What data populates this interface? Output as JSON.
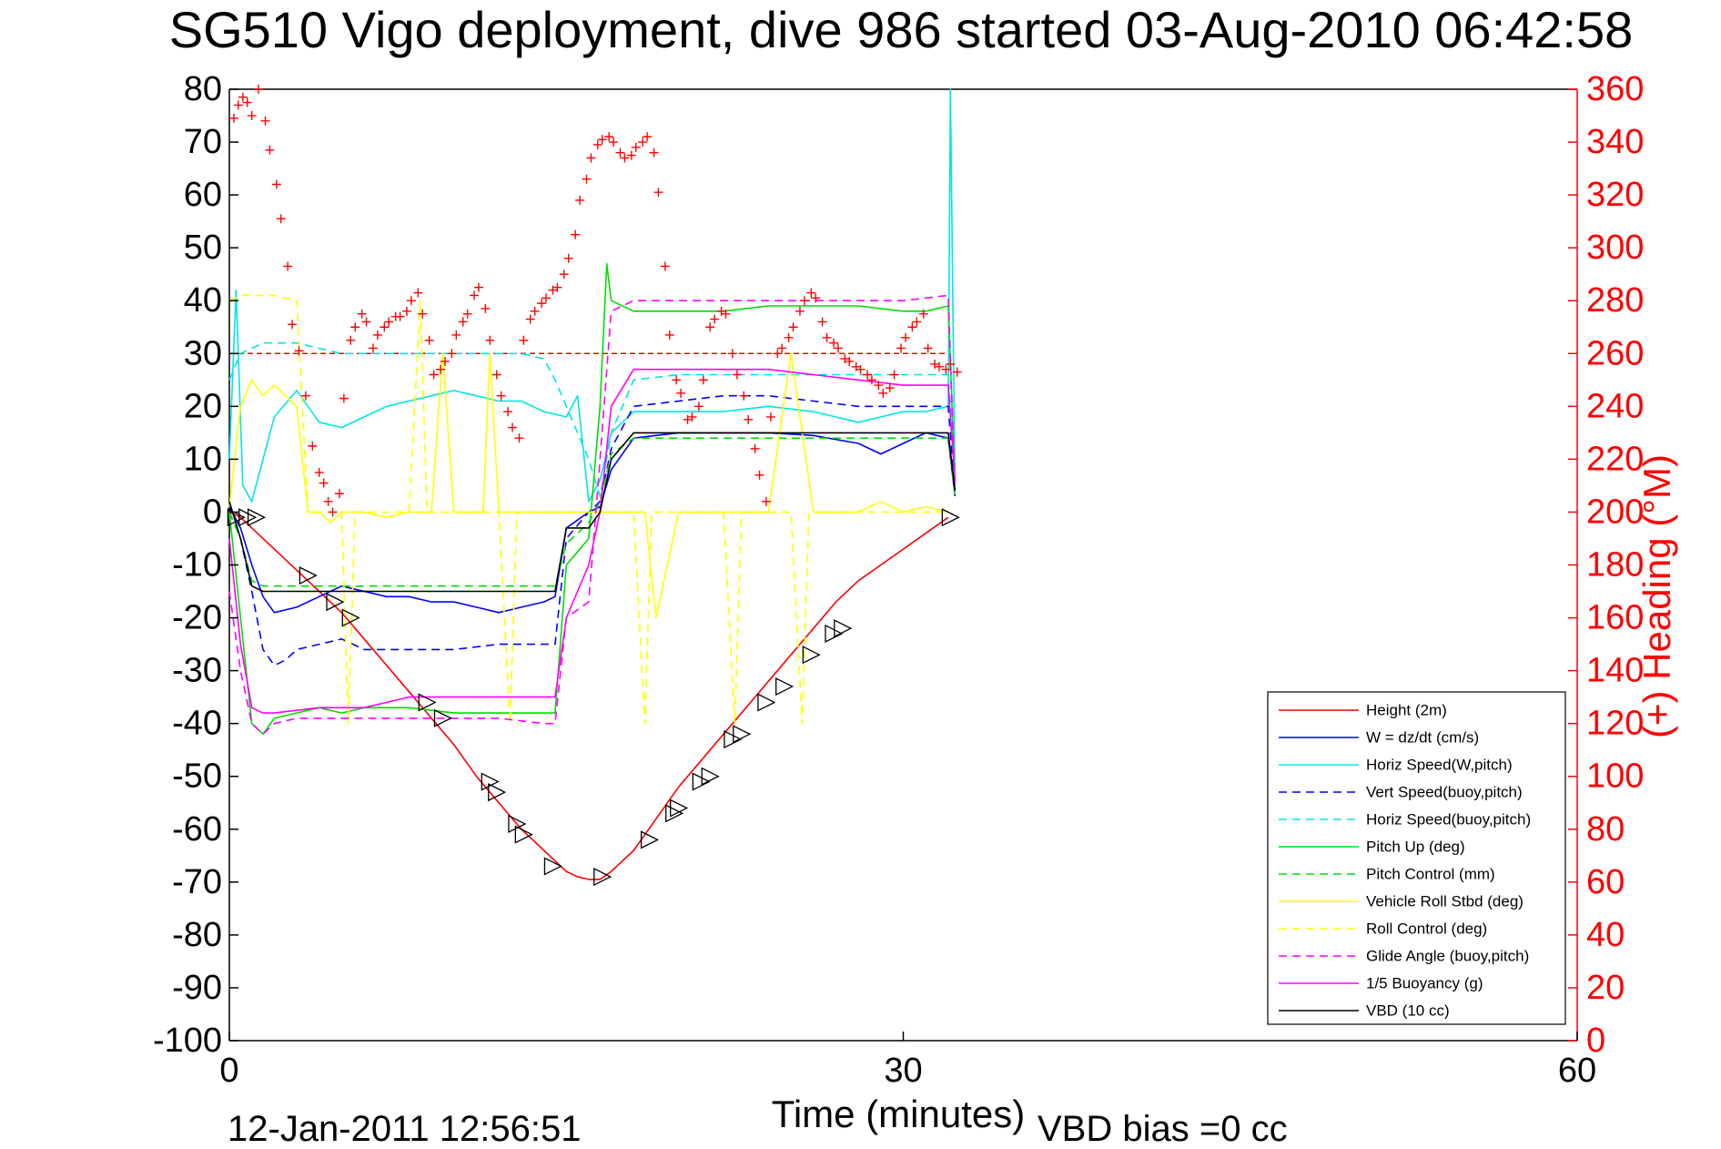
{
  "footer": {
    "timestamp": "12-Jan-2011 12:56:51",
    "vbd_bias": "VBD bias =0 cc"
  },
  "chart_data": {
    "type": "line",
    "title": "SG510 Vigo deployment, dive 986 started 03-Aug-2010 06:42:58",
    "xlabel": "Time (minutes)",
    "ylabel_right": "(+) Heading (°M)",
    "xlim": [
      0,
      60
    ],
    "ylim": [
      -100,
      80
    ],
    "ylim_right": [
      0,
      360
    ],
    "grid": true,
    "legend_position": "bottom-right",
    "xticks": [
      "0",
      "30",
      "60"
    ],
    "yticks": [
      "80",
      "70",
      "60",
      "50",
      "40",
      "30",
      "20",
      "10",
      "0",
      "-10",
      "-20",
      "-30",
      "-40",
      "-50",
      "-60",
      "-70",
      "-80",
      "-90",
      "-100"
    ],
    "yticks_right": [
      "360",
      "340",
      "320",
      "300",
      "280",
      "260",
      "240",
      "220",
      "200",
      "180",
      "160",
      "140",
      "120",
      "100",
      "80",
      "60",
      "40",
      "20",
      "0"
    ],
    "colors": {
      "right_axis": "#ff0000",
      "grid": "#000000"
    },
    "reference_lines": [
      {
        "y_right": 260,
        "x_range": [
          0,
          32
        ],
        "color": "#ff0000",
        "style": "dashed"
      }
    ],
    "series": [
      {
        "name": "Height (2m)",
        "color": "#ff0000",
        "style": "solid",
        "x": [
          0,
          0.5,
          1,
          2,
          3,
          4,
          5,
          6,
          7,
          8,
          9,
          10,
          11,
          12,
          13,
          14,
          14.5,
          15,
          15.5,
          16,
          16.5,
          17,
          18,
          19,
          20,
          21,
          22,
          23,
          24,
          25,
          26,
          27,
          28,
          29,
          30,
          31,
          32
        ],
        "y": [
          0,
          -1,
          -3,
          -7,
          -11,
          -15,
          -19,
          -24,
          -29,
          -34,
          -39,
          -44,
          -50,
          -55,
          -60,
          -64,
          -66,
          -68,
          -69,
          -69.5,
          -69.5,
          -68,
          -64,
          -58,
          -52,
          -47,
          -42,
          -37,
          -32,
          -27,
          -22,
          -17,
          -13,
          -10,
          -7,
          -4,
          -1
        ]
      },
      {
        "name": "W = dz/dt (cm/s)",
        "color": "#0000ff",
        "style": "solid",
        "x": [
          0,
          0.5,
          1,
          1.5,
          2,
          3,
          4,
          5,
          6,
          7,
          8,
          9,
          10,
          11,
          12,
          13,
          14,
          14.5,
          15,
          16,
          16.5,
          17,
          18,
          20,
          22,
          24,
          26,
          28,
          29,
          30,
          31,
          32,
          32.3
        ],
        "y": [
          1,
          -3,
          -10,
          -16,
          -19,
          -18,
          -16,
          -14,
          -15,
          -16,
          -16,
          -17,
          -17,
          -18,
          -19,
          -18,
          -17,
          -16,
          -3,
          0,
          1,
          8,
          14,
          15,
          15,
          15,
          14.5,
          13,
          11,
          13,
          15,
          14,
          3
        ]
      },
      {
        "name": "Horiz Speed(W,pitch)",
        "color": "#00e5e5",
        "style": "solid",
        "x": [
          0,
          0.3,
          0.6,
          1,
          1.5,
          2,
          3,
          4,
          5,
          6,
          7,
          8,
          9,
          10,
          11,
          12,
          13,
          14,
          15,
          15.5,
          16,
          16.5,
          17,
          18,
          20,
          22,
          24,
          26,
          28,
          30,
          31,
          32,
          32.1,
          32.3
        ],
        "y": [
          10,
          42,
          5,
          2,
          10,
          18,
          23,
          17,
          16,
          18,
          20,
          21,
          22,
          23,
          22,
          21,
          21,
          19,
          18,
          22,
          2,
          6,
          15,
          19,
          19,
          19,
          20,
          19,
          17,
          19,
          19,
          20,
          80,
          5
        ]
      },
      {
        "name": "Vert Speed(buoy,pitch)",
        "color": "#0000ff",
        "style": "dashed",
        "x": [
          0,
          0.5,
          1,
          1.5,
          2,
          2.5,
          3,
          4,
          5,
          6,
          8,
          10,
          12,
          14,
          14.5,
          15,
          16,
          16.5,
          17,
          18,
          20,
          22,
          24,
          26,
          28,
          30,
          32,
          32.3
        ],
        "y": [
          0,
          -5,
          -15,
          -26,
          -29,
          -28,
          -26,
          -25,
          -24,
          -26,
          -26,
          -26,
          -25,
          -25,
          -25,
          -5,
          0,
          2,
          12,
          20,
          21,
          22,
          22,
          21,
          20,
          20,
          20,
          4
        ]
      },
      {
        "name": "Horiz Speed(buoy,pitch)",
        "color": "#00e5e5",
        "style": "dashed",
        "x": [
          0,
          0.5,
          1,
          1.5,
          2,
          3,
          4,
          5,
          6,
          8,
          10,
          12,
          13,
          14,
          14.5,
          15,
          16,
          16.5,
          17,
          18,
          20,
          22,
          24,
          26,
          28,
          30,
          32,
          32.3
        ],
        "y": [
          25,
          30,
          31,
          32,
          32,
          32,
          31,
          30,
          30,
          30,
          30,
          30,
          30,
          29,
          25,
          20,
          10,
          3,
          15,
          25,
          26,
          26,
          26,
          26,
          26,
          26,
          26,
          8
        ]
      },
      {
        "name": "Pitch Up (deg)",
        "color": "#00dd00",
        "style": "solid",
        "x": [
          0,
          0.5,
          1,
          1.5,
          2,
          3,
          4,
          5,
          6,
          8,
          10,
          12,
          14,
          14.5,
          15,
          16,
          16.5,
          16.8,
          17,
          18,
          20,
          22,
          24,
          26,
          28,
          30,
          31,
          32,
          32.3
        ],
        "y": [
          0,
          -20,
          -40,
          -42,
          -39,
          -38,
          -37,
          -38,
          -37,
          -37,
          -38,
          -38,
          -38,
          -38,
          -10,
          -5,
          20,
          47,
          40,
          38,
          38,
          38,
          39,
          39,
          39,
          38,
          38,
          39,
          5
        ]
      },
      {
        "name": "Pitch Control (mm)",
        "color": "#00dd00",
        "style": "dashed",
        "x": [
          0,
          0.5,
          1,
          1.5,
          2,
          4,
          6,
          8,
          10,
          12,
          14,
          14.5,
          15,
          16,
          16.5,
          17,
          18,
          20,
          22,
          24,
          26,
          28,
          30,
          32,
          32.3
        ],
        "y": [
          0,
          -5,
          -13,
          -14,
          -14,
          -14,
          -14,
          -14,
          -14,
          -14,
          -14,
          -14,
          -6,
          -2,
          2,
          11,
          14,
          14,
          14,
          14,
          14,
          14,
          14,
          14,
          3
        ]
      },
      {
        "name": "Vehicle Roll Stbd (deg)",
        "color": "#ffff00",
        "style": "solid",
        "x": [
          0,
          0.5,
          1,
          1.5,
          2,
          3,
          3.5,
          4,
          4.5,
          5,
          5.5,
          6,
          7,
          8,
          8.5,
          9,
          9.5,
          10,
          11,
          11.3,
          11.6,
          12,
          12.5,
          13,
          14,
          15,
          16,
          17,
          18,
          18.5,
          19,
          20,
          20.5,
          21,
          22,
          23,
          24,
          25,
          26,
          27,
          28,
          29,
          30,
          31,
          32
        ],
        "y": [
          1,
          20,
          25,
          22,
          24,
          20,
          0,
          0,
          -2,
          0,
          0,
          0,
          -1,
          0,
          0,
          0,
          30,
          0,
          0,
          0,
          30,
          0,
          0,
          0,
          0,
          0,
          0,
          0,
          0,
          0,
          -20,
          0,
          0,
          0,
          0,
          0,
          0,
          30,
          0,
          0,
          0,
          2,
          0,
          1,
          0
        ]
      },
      {
        "name": "Roll Control (deg)",
        "color": "#ffff00",
        "style": "dashed",
        "x": [
          0,
          0.5,
          1,
          2,
          3,
          3.5,
          4,
          5,
          5.3,
          5.6,
          6,
          8,
          8.5,
          8.8,
          9.1,
          10,
          12,
          12.5,
          12.8,
          13.1,
          14,
          15,
          16,
          17,
          18,
          18.5,
          18.8,
          19.1,
          20,
          22,
          22.5,
          22.8,
          23.1,
          24,
          25,
          25.5,
          25.8,
          26.1,
          27,
          28,
          29,
          30,
          31,
          32
        ],
        "y": [
          40,
          41,
          41,
          41,
          40,
          0,
          0,
          0,
          -40,
          0,
          0,
          0,
          40,
          0,
          0,
          0,
          0,
          -40,
          0,
          0,
          0,
          0,
          0,
          0,
          0,
          -40,
          0,
          0,
          0,
          0,
          -40,
          0,
          0,
          0,
          0,
          -40,
          0,
          0,
          0,
          0,
          0,
          0,
          0,
          0
        ]
      },
      {
        "name": "Glide Angle (buoy,pitch)",
        "color": "#ff00ff",
        "style": "dashed",
        "x": [
          0,
          0.5,
          1,
          1.5,
          2,
          3,
          4,
          6,
          8,
          10,
          12,
          14,
          14.5,
          15,
          16,
          16.5,
          17,
          18,
          20,
          22,
          24,
          26,
          28,
          30,
          32,
          32.3
        ],
        "y": [
          -15,
          -30,
          -40,
          -42,
          -40,
          -39,
          -39,
          -39,
          -39,
          -39,
          -39,
          -40,
          -40,
          -20,
          -17,
          10,
          38,
          40,
          40,
          40,
          40,
          40,
          40,
          40,
          41,
          5
        ]
      },
      {
        "name": "1/5 Buoyancy (g)",
        "color": "#ff00ff",
        "style": "solid",
        "x": [
          0,
          0.5,
          1,
          1.5,
          2,
          4,
          6,
          8,
          10,
          12,
          14,
          14.5,
          15,
          16,
          16.5,
          17,
          18,
          20,
          22,
          24,
          26,
          28,
          30,
          32,
          32.3
        ],
        "y": [
          -5,
          -25,
          -37,
          -38,
          -38,
          -37,
          -37,
          -35,
          -35,
          -35,
          -35,
          -35,
          -20,
          -10,
          0,
          20,
          27,
          27,
          27,
          27,
          26,
          25,
          24,
          24,
          6
        ]
      },
      {
        "name": "VBD (10 cc)",
        "color": "#000000",
        "style": "solid",
        "x": [
          0,
          0.5,
          1,
          1.5,
          2,
          4,
          6,
          8,
          10,
          12,
          14,
          14.5,
          15,
          16,
          16.5,
          17,
          18,
          20,
          22,
          24,
          26,
          28,
          30,
          32,
          32.3
        ],
        "y": [
          2,
          -5,
          -14,
          -15,
          -15,
          -15,
          -15,
          -15,
          -15,
          -15,
          -15,
          -15,
          -3,
          -3,
          0,
          10,
          15,
          15,
          15,
          15,
          15,
          15,
          15,
          15,
          4
        ]
      }
    ],
    "triangle_markers": {
      "color": "#000000",
      "x": [
        0.3,
        0.8,
        1.2,
        3.5,
        4.7,
        5.4,
        8.8,
        9.5,
        11.6,
        11.9,
        12.8,
        13.1,
        14.4,
        16.6,
        18.7,
        19.8,
        20.0,
        21.0,
        21.4,
        22.4,
        22.8,
        23.9,
        24.7,
        25.9,
        26.9,
        27.3,
        32.1
      ],
      "y": [
        -1,
        -1,
        -1,
        -12,
        -17,
        -20,
        -36,
        -39,
        -51,
        -53,
        -59,
        -61,
        -67,
        -69,
        -62,
        -57,
        -56,
        -51,
        -50,
        -43,
        -42,
        -36,
        -33,
        -27,
        -23,
        -22,
        -1
      ]
    },
    "heading_points": {
      "name": "(+) Heading",
      "color": "#ff0000",
      "marker": "+",
      "x": [
        0.2,
        0.4,
        0.6,
        0.8,
        1.0,
        1.3,
        1.6,
        1.8,
        2.1,
        2.3,
        2.6,
        2.8,
        3.1,
        3.4,
        3.7,
        4.0,
        4.2,
        4.4,
        4.6,
        4.9,
        5.1,
        5.4,
        5.6,
        5.9,
        6.1,
        6.4,
        6.6,
        6.9,
        7.1,
        7.4,
        7.6,
        7.9,
        8.1,
        8.4,
        8.6,
        8.9,
        9.1,
        9.4,
        9.6,
        9.9,
        10.1,
        10.4,
        10.6,
        10.9,
        11.1,
        11.4,
        11.6,
        11.9,
        12.1,
        12.4,
        12.6,
        12.9,
        13.1,
        13.4,
        13.6,
        13.9,
        14.1,
        14.4,
        14.6,
        14.9,
        15.1,
        15.4,
        15.6,
        15.9,
        16.1,
        16.4,
        16.6,
        16.9,
        17.1,
        17.4,
        17.6,
        17.9,
        18.1,
        18.4,
        18.6,
        18.9,
        19.1,
        19.4,
        19.6,
        19.9,
        20.1,
        20.4,
        20.6,
        20.9,
        21.1,
        21.4,
        21.6,
        21.9,
        22.1,
        22.4,
        22.6,
        22.9,
        23.1,
        23.4,
        23.6,
        23.9,
        24.1,
        24.4,
        24.6,
        24.9,
        25.1,
        25.4,
        25.6,
        25.9,
        26.1,
        26.4,
        26.6,
        26.9,
        27.1,
        27.4,
        27.6,
        27.9,
        28.1,
        28.4,
        28.6,
        28.9,
        29.1,
        29.4,
        29.6,
        29.9,
        30.1,
        30.4,
        30.6,
        30.9,
        31.1,
        31.4,
        31.6,
        31.9,
        32.1,
        32.4
      ],
      "y": [
        349,
        354,
        357,
        355,
        350,
        360,
        348,
        337,
        324,
        311,
        293,
        271,
        261,
        244,
        225,
        215,
        211,
        204,
        200,
        207,
        243,
        265,
        270,
        275,
        272,
        262,
        267,
        270,
        272,
        274,
        274,
        276,
        280,
        283,
        275,
        265,
        252,
        254,
        257,
        260,
        267,
        272,
        275,
        282,
        285,
        277,
        265,
        252,
        244,
        238,
        232,
        228,
        265,
        273,
        276,
        279,
        281,
        284,
        285,
        290,
        296,
        305,
        318,
        326,
        334,
        339,
        341,
        342,
        340,
        336,
        334,
        335,
        338,
        340,
        342,
        336,
        321,
        293,
        267,
        250,
        245,
        235,
        236,
        240,
        250,
        270,
        273,
        276,
        275,
        260,
        252,
        244,
        235,
        224,
        214,
        204,
        236,
        260,
        262,
        266,
        270,
        276,
        280,
        283,
        281,
        272,
        266,
        264,
        262,
        258,
        257,
        255,
        254,
        252,
        250,
        248,
        245,
        247,
        252,
        262,
        266,
        270,
        272,
        275,
        262,
        256,
        255,
        254,
        256,
        253
      ]
    }
  }
}
